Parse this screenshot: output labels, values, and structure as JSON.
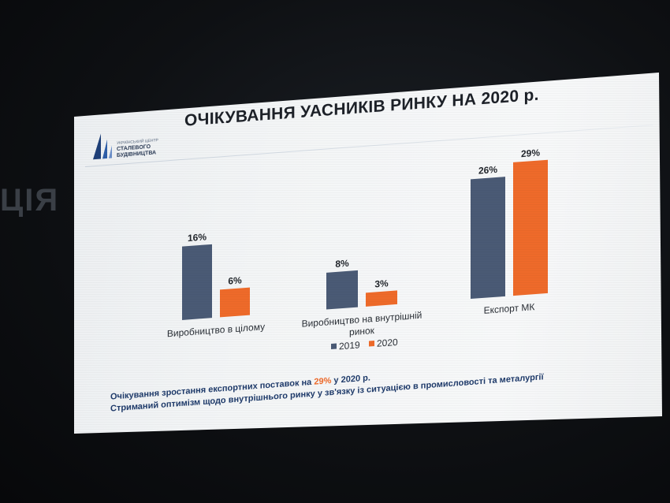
{
  "background_text": "ЦІЯ",
  "slide": {
    "title": "ОЧІКУВАННЯ УАСНИКІВ РИНКУ НА 2020 р.",
    "logo": {
      "line1": "УКРАЇНСЬКИЙ ЦЕНТР",
      "line2": "СТАЛЕВОГО",
      "line3": "БУДІВНИЦТВА"
    },
    "notes": {
      "line1_prefix": "Очікування зростання експортних поставок на ",
      "line1_highlight": "29%",
      "line1_suffix": " у 2020 р.",
      "line2": "Стриманий оптимізм щодо внутрішнього ринку у зв'язку із ситуацією в промисловості та металургії"
    }
  },
  "chart_data": {
    "type": "bar",
    "categories": [
      "Виробництво в цілому",
      "Виробництво на внутрішній ринок",
      "Експорт МК"
    ],
    "category_lines": [
      [
        "Виробництво в цілому"
      ],
      [
        "Виробництво на внутрішній",
        "ринок"
      ],
      [
        "Експорт МК"
      ]
    ],
    "series": [
      {
        "name": "2019",
        "values": [
          16,
          8,
          26
        ],
        "labels": [
          "16%",
          "8%",
          "26%"
        ],
        "color": "#4a5a75"
      },
      {
        "name": "2020",
        "values": [
          6,
          3,
          29
        ],
        "labels": [
          "6%",
          "3%",
          "29%"
        ],
        "color": "#ee6a2a"
      }
    ],
    "ylim": [
      0,
      30
    ],
    "unit": "%",
    "grid": false,
    "legend_position": "bottom-center"
  }
}
